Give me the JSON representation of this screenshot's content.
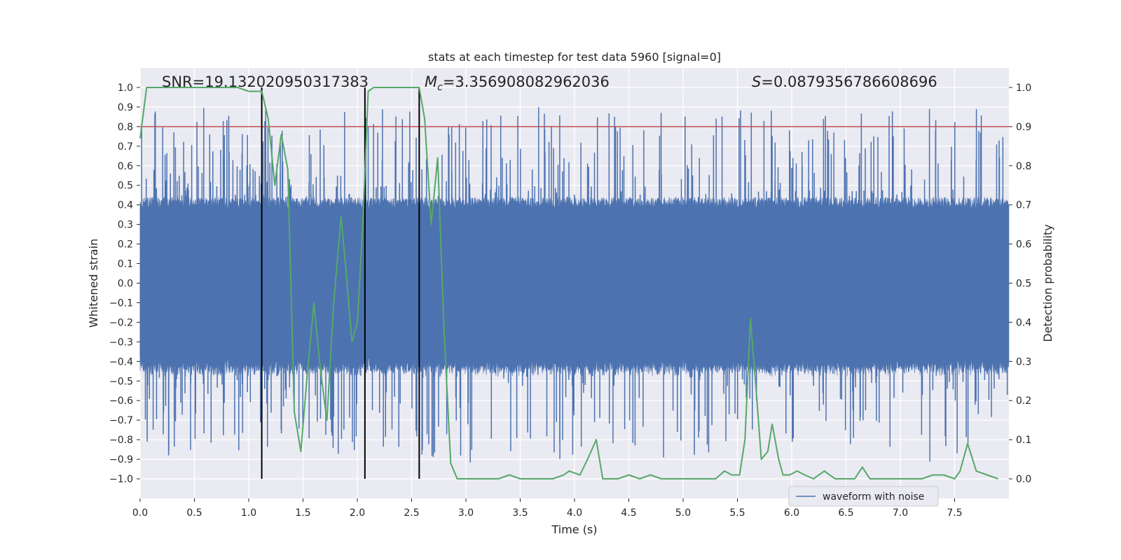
{
  "chart_data": {
    "type": "line",
    "title": "stats at each timestep for test data 5960 [signal=0]",
    "xlabel": "Time (s)",
    "ylabel": "Whitened strain",
    "y2label": "Detection probability",
    "xlim": [
      0.0,
      8.0
    ],
    "ylim": [
      -1.1,
      1.1
    ],
    "y2lim": [
      -0.05,
      1.05
    ],
    "xticks": [
      0.0,
      0.5,
      1.0,
      1.5,
      2.0,
      2.5,
      3.0,
      3.5,
      4.0,
      4.5,
      5.0,
      5.5,
      6.0,
      6.5,
      7.0,
      7.5
    ],
    "xtick_labels": [
      "0.0",
      "0.5",
      "1.0",
      "1.5",
      "2.0",
      "2.5",
      "3.0",
      "3.5",
      "4.0",
      "4.5",
      "5.0",
      "5.5",
      "6.0",
      "6.5",
      "7.0",
      "7.5"
    ],
    "yticks": [
      -1.0,
      -0.9,
      -0.8,
      -0.7,
      -0.6,
      -0.5,
      -0.4,
      -0.3,
      -0.2,
      -0.1,
      0.0,
      0.1,
      0.2,
      0.3,
      0.4,
      0.5,
      0.6,
      0.7,
      0.8,
      0.9,
      1.0
    ],
    "ytick_labels": [
      "−1.0",
      "−0.9",
      "−0.8",
      "−0.7",
      "−0.6",
      "−0.5",
      "−0.4",
      "−0.3",
      "−0.2",
      "−0.1",
      "0.0",
      "0.1",
      "0.2",
      "0.3",
      "0.4",
      "0.5",
      "0.6",
      "0.7",
      "0.8",
      "0.9",
      "1.0"
    ],
    "y2ticks": [
      0.0,
      0.1,
      0.2,
      0.3,
      0.4,
      0.5,
      0.6,
      0.7,
      0.8,
      0.9,
      1.0
    ],
    "y2tick_labels": [
      "0.0",
      "0.1",
      "0.2",
      "0.3",
      "0.4",
      "0.5",
      "0.6",
      "0.7",
      "0.8",
      "0.9",
      "1.0"
    ],
    "annotations": {
      "snr": "SNR=19.132020950317383",
      "mc_symbol": "M",
      "mc_sub": "c",
      "mc_value": "=3.356908082962036",
      "s_symbol": "S",
      "s_value": "=0.0879356786608696"
    },
    "threshold_line": {
      "y2": 0.9,
      "color": "#c44e52"
    },
    "vertical_markers": [
      1.12,
      2.07,
      2.57
    ],
    "waveform": {
      "name": "waveform with noise",
      "color": "#4c72b0",
      "core_amplitude": 0.38,
      "max_spike_upper": 0.94,
      "max_spike_lower": -0.97
    },
    "detection_probability": {
      "color": "#55a868",
      "x": [
        0.0,
        0.06,
        0.12,
        0.2,
        0.3,
        0.45,
        0.6,
        0.75,
        0.9,
        1.0,
        1.05,
        1.1,
        1.12,
        1.18,
        1.24,
        1.3,
        1.36,
        1.42,
        1.48,
        1.54,
        1.6,
        1.66,
        1.72,
        1.78,
        1.85,
        1.9,
        1.95,
        2.0,
        2.05,
        2.1,
        2.15,
        2.2,
        2.3,
        2.4,
        2.5,
        2.57,
        2.62,
        2.68,
        2.74,
        2.8,
        2.86,
        2.92,
        3.0,
        3.1,
        3.2,
        3.3,
        3.4,
        3.5,
        3.6,
        3.7,
        3.8,
        3.9,
        3.95,
        4.05,
        4.12,
        4.2,
        4.26,
        4.32,
        4.4,
        4.5,
        4.6,
        4.7,
        4.8,
        4.9,
        5.0,
        5.1,
        5.2,
        5.3,
        5.38,
        5.45,
        5.52,
        5.57,
        5.62,
        5.68,
        5.72,
        5.78,
        5.82,
        5.88,
        5.92,
        5.98,
        6.05,
        6.12,
        6.2,
        6.3,
        6.4,
        6.5,
        6.58,
        6.65,
        6.72,
        6.8,
        6.9,
        7.0,
        7.1,
        7.2,
        7.3,
        7.4,
        7.5,
        7.55,
        7.62,
        7.7,
        7.8,
        7.9
      ],
      "values": [
        0.87,
        1.0,
        1.0,
        1.0,
        1.0,
        1.0,
        1.0,
        1.0,
        1.0,
        0.99,
        0.99,
        0.99,
        0.99,
        0.92,
        0.75,
        0.88,
        0.79,
        0.17,
        0.07,
        0.27,
        0.45,
        0.28,
        0.15,
        0.44,
        0.67,
        0.52,
        0.35,
        0.4,
        0.65,
        0.99,
        1.0,
        1.0,
        1.0,
        1.0,
        1.0,
        1.0,
        0.92,
        0.65,
        0.82,
        0.37,
        0.04,
        0.0,
        0.0,
        0.0,
        0.0,
        0.0,
        0.01,
        0.0,
        0.0,
        0.0,
        0.0,
        0.01,
        0.02,
        0.01,
        0.05,
        0.1,
        0.0,
        0.0,
        0.0,
        0.01,
        0.0,
        0.01,
        0.0,
        0.0,
        0.0,
        0.0,
        0.0,
        0.0,
        0.02,
        0.01,
        0.01,
        0.1,
        0.41,
        0.2,
        0.05,
        0.07,
        0.14,
        0.05,
        0.01,
        0.01,
        0.02,
        0.01,
        0.0,
        0.02,
        0.0,
        0.0,
        0.0,
        0.03,
        0.0,
        0.0,
        0.0,
        0.0,
        0.0,
        0.0,
        0.01,
        0.01,
        0.0,
        0.02,
        0.09,
        0.02,
        0.01,
        0.0
      ]
    },
    "legend": {
      "label": "waveform with noise",
      "position": "lower-right"
    }
  }
}
